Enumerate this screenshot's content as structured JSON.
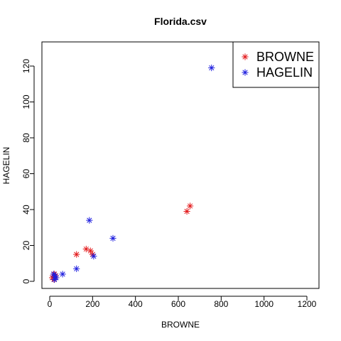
{
  "chart_data": {
    "type": "scatter",
    "title": "Florida.csv",
    "xlabel": "BROWNE",
    "ylabel": "HAGELIN",
    "xlim": [
      0,
      1200
    ],
    "ylim": [
      0,
      120
    ],
    "x_ticks": [
      0,
      200,
      400,
      600,
      800,
      1000,
      1200
    ],
    "y_ticks": [
      0,
      20,
      40,
      60,
      80,
      100,
      120
    ],
    "x_tick_labels": [
      "0",
      "200",
      "400",
      "600",
      "800",
      "1000",
      "1200"
    ],
    "y_tick_labels": [
      "0",
      "20",
      "40",
      "60",
      "80",
      "100",
      "120"
    ],
    "grid": false,
    "legend_position": "top-right",
    "legend": [
      {
        "label": "BROWNE",
        "color": "#e31a1c"
      },
      {
        "label": "HAGELIN",
        "color": "#1f1fdf"
      }
    ],
    "series": [
      {
        "name": "BROWNE",
        "color": "#e31a1c",
        "marker": "asterisk",
        "points": [
          [
            12,
            2
          ],
          [
            18,
            3
          ],
          [
            20,
            1
          ],
          [
            22,
            4
          ],
          [
            25,
            2
          ],
          [
            28,
            3
          ],
          [
            125,
            15
          ],
          [
            170,
            18
          ],
          [
            190,
            17
          ],
          [
            200,
            15
          ],
          [
            640,
            39
          ],
          [
            655,
            42
          ]
        ]
      },
      {
        "name": "HAGELIN",
        "color": "#1f1fdf",
        "marker": "asterisk",
        "points": [
          [
            18,
            4
          ],
          [
            22,
            1
          ],
          [
            25,
            3
          ],
          [
            30,
            2
          ],
          [
            60,
            4
          ],
          [
            125,
            7
          ],
          [
            185,
            34
          ],
          [
            205,
            14
          ],
          [
            295,
            24
          ],
          [
            755,
            119
          ]
        ]
      }
    ]
  }
}
